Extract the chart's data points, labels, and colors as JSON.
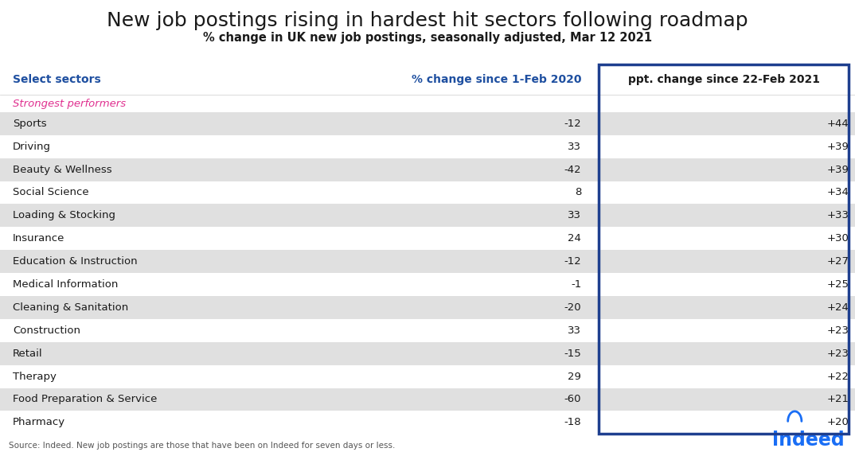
{
  "title": "New job postings rising in hardest hit sectors following roadmap",
  "subtitle": "% change in UK new job postings, seasonally adjusted, Mar 12 2021",
  "col1_header": "Select sectors",
  "col2_header": "% change since 1-Feb 2020",
  "col3_header": "ppt. change since 22-Feb 2021",
  "subheader": "Strongest performers",
  "sectors": [
    "Sports",
    "Driving",
    "Beauty & Wellness",
    "Social Science",
    "Loading & Stocking",
    "Insurance",
    "Education & Instruction",
    "Medical Information",
    "Cleaning & Sanitation",
    "Construction",
    "Retail",
    "Therapy",
    "Food Preparation & Service",
    "Pharmacy"
  ],
  "col2_values": [
    "-12",
    "33",
    "-42",
    "8",
    "33",
    "24",
    "-12",
    "-1",
    "-20",
    "33",
    "-15",
    "29",
    "-60",
    "-18"
  ],
  "col3_values": [
    "+44",
    "+39",
    "+39",
    "+34",
    "+33",
    "+30",
    "+27",
    "+25",
    "+24",
    "+23",
    "+23",
    "+22",
    "+21",
    "+20"
  ],
  "shaded_rows": [
    0,
    2,
    4,
    6,
    8,
    10,
    12
  ],
  "row_bg_color": "#e0e0e0",
  "title_color": "#1a1a1a",
  "subtitle_color": "#1a1a1a",
  "col1_header_color": "#1e4fa0",
  "col2_header_color": "#1e4fa0",
  "col3_header_color": "#1a1a1a",
  "subheader_color": "#e0308f",
  "data_text_color": "#1a1a1a",
  "border_color": "#1e3f8f",
  "source_text": "Source: Indeed. New job postings are those that have been on Indeed for seven days or less.",
  "indeed_color": "#1a6ef5",
  "background_color": "#ffffff"
}
